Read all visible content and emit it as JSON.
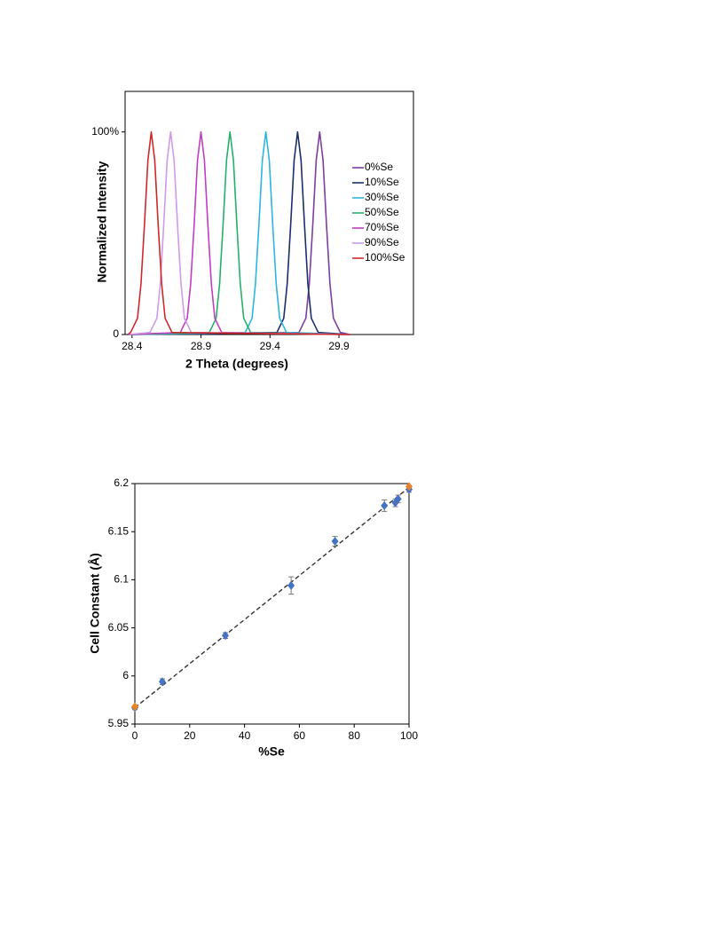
{
  "chart_data": [
    {
      "type": "line",
      "x_label": "2 Theta (degrees)",
      "y_label": "Normalized Intensity",
      "xlim": [
        28.35,
        30.44
      ],
      "ylim": [
        0,
        120
      ],
      "xticks": [
        28.4,
        28.9,
        29.4,
        29.9
      ],
      "yticks": [
        0,
        {
          "value": 100,
          "label": "100%"
        }
      ],
      "legend": "right",
      "series": [
        {
          "name": "0%Se",
          "color": "#7b3fa0",
          "x": [
            28.37,
            29.61,
            29.66,
            29.685,
            29.71,
            29.735,
            29.76,
            29.785,
            29.81,
            29.835,
            29.86,
            29.91,
            29.98
          ],
          "values": [
            0,
            1,
            8,
            25,
            54,
            86,
            100,
            86,
            54,
            25,
            8,
            1,
            0
          ]
        },
        {
          "name": "10%Se",
          "color": "#1a2f6b",
          "x": [
            28.37,
            29.45,
            29.5,
            29.525,
            29.55,
            29.575,
            29.6,
            29.625,
            29.65,
            29.675,
            29.7,
            29.75,
            29.98
          ],
          "values": [
            0,
            1,
            8,
            25,
            54,
            86,
            100,
            86,
            54,
            25,
            8,
            1,
            0
          ]
        },
        {
          "name": "30%Se",
          "color": "#2bb5e0",
          "x": [
            28.37,
            29.22,
            29.27,
            29.295,
            29.32,
            29.345,
            29.37,
            29.395,
            29.42,
            29.445,
            29.47,
            29.52,
            29.98
          ],
          "values": [
            0,
            1,
            8,
            25,
            54,
            86,
            100,
            86,
            54,
            25,
            8,
            1,
            0
          ]
        },
        {
          "name": "50%Se",
          "color": "#25b06a",
          "x": [
            28.37,
            28.96,
            29.01,
            29.035,
            29.06,
            29.085,
            29.11,
            29.135,
            29.16,
            29.185,
            29.21,
            29.26,
            29.98
          ],
          "values": [
            0,
            1,
            8,
            25,
            54,
            86,
            100,
            86,
            54,
            25,
            8,
            1,
            0
          ]
        },
        {
          "name": "70%Se",
          "color": "#c03fc0",
          "x": [
            28.37,
            28.75,
            28.8,
            28.825,
            28.85,
            28.875,
            28.9,
            28.925,
            28.95,
            28.975,
            29.0,
            29.05,
            29.98
          ],
          "values": [
            0,
            1,
            8,
            25,
            54,
            86,
            100,
            86,
            54,
            25,
            8,
            1,
            0
          ]
        },
        {
          "name": "90%Se",
          "color": "#cf9ae8",
          "x": [
            28.37,
            28.53,
            28.58,
            28.605,
            28.63,
            28.655,
            28.68,
            28.705,
            28.73,
            28.755,
            28.78,
            28.83,
            29.98
          ],
          "values": [
            0,
            1,
            8,
            25,
            54,
            86,
            100,
            86,
            54,
            25,
            8,
            1,
            0
          ]
        },
        {
          "name": "100%Se",
          "color": "#d0282a",
          "x": [
            28.37,
            28.39,
            28.44,
            28.465,
            28.49,
            28.515,
            28.54,
            28.565,
            28.59,
            28.615,
            28.64,
            28.69,
            29.98
          ],
          "values": [
            0,
            1,
            8,
            25,
            54,
            86,
            100,
            86,
            54,
            25,
            8,
            1,
            0
          ]
        }
      ]
    },
    {
      "type": "scatter",
      "x_label": "%Se",
      "y_label": "Cell Constant (Å)",
      "xlim": [
        0,
        100
      ],
      "ylim": [
        5.95,
        6.2
      ],
      "xticks": [
        0,
        20,
        40,
        60,
        80,
        100
      ],
      "yticks": [
        5.95,
        6,
        6.05,
        6.1,
        6.15,
        6.2
      ],
      "series": [
        {
          "color": "#4472c4",
          "x": [
            0,
            10,
            33,
            57,
            73,
            91,
            95,
            96,
            100
          ],
          "values": [
            5.967,
            5.994,
            6.042,
            6.094,
            6.14,
            6.177,
            6.18,
            6.184,
            6.194
          ],
          "errors": [
            0.002,
            0.003,
            0.003,
            0.009,
            0.005,
            0.006,
            0.004,
            0.004,
            0.003
          ]
        },
        {
          "color": "#e8822a",
          "x": [
            0,
            100
          ],
          "values": [
            5.968,
            6.197
          ]
        }
      ],
      "trendline": {
        "color": "#333333",
        "dashed": true,
        "x": [
          0,
          100
        ],
        "values": [
          5.967,
          6.196
        ]
      }
    }
  ]
}
